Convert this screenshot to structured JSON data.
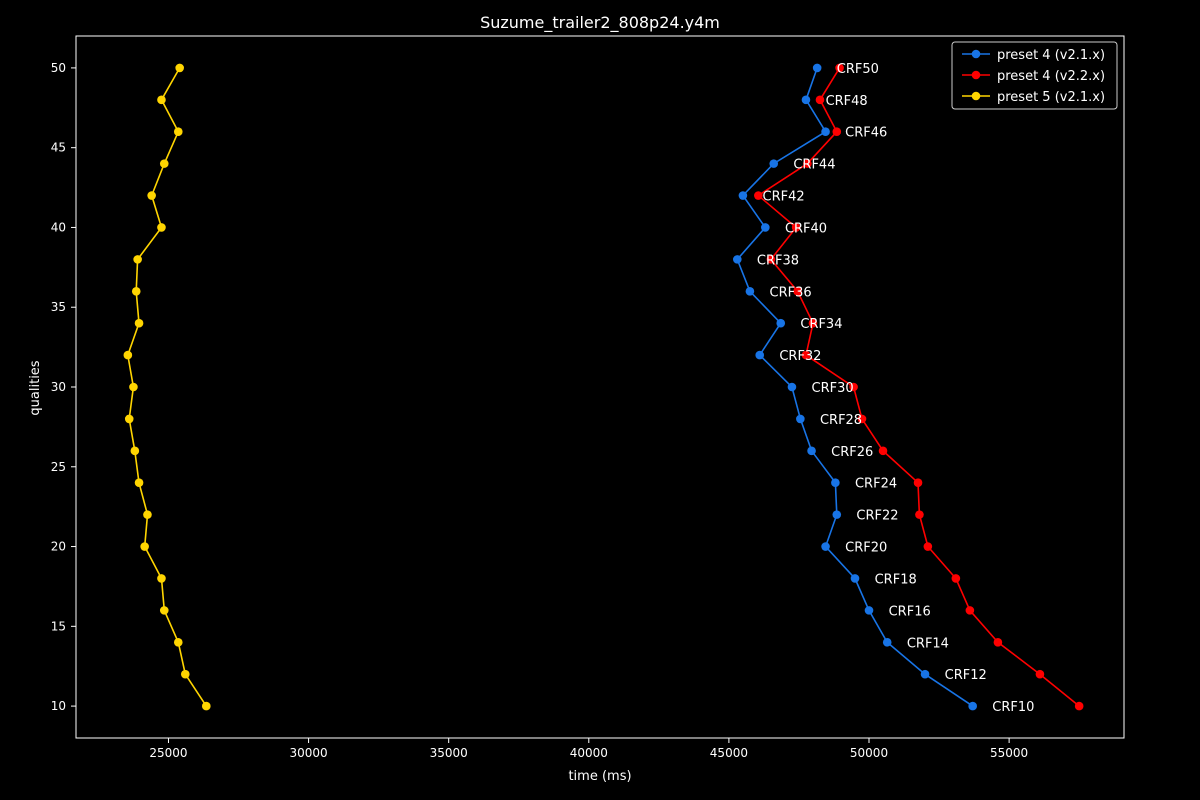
{
  "chart_data": {
    "type": "line",
    "title": "Suzume_trailer2_808p24.y4m",
    "xlabel": "time (ms)",
    "ylabel": "qualities",
    "xlim": [
      21700,
      59100
    ],
    "ylim": [
      8,
      52
    ],
    "xticks": [
      25000,
      30000,
      35000,
      40000,
      45000,
      50000,
      55000
    ],
    "yticks": [
      10,
      15,
      20,
      25,
      30,
      35,
      40,
      45,
      50
    ],
    "legend_position": "top-right",
    "series": [
      {
        "name": "preset 4 (v2.1.x)",
        "color": "#1874e6",
        "points": [
          [
            53700,
            10
          ],
          [
            52000,
            12
          ],
          [
            50650,
            14
          ],
          [
            50000,
            16
          ],
          [
            49500,
            18
          ],
          [
            48450,
            20
          ],
          [
            48850,
            22
          ],
          [
            48800,
            24
          ],
          [
            47950,
            26
          ],
          [
            47550,
            28
          ],
          [
            47250,
            30
          ],
          [
            46100,
            32
          ],
          [
            46850,
            34
          ],
          [
            45750,
            36
          ],
          [
            45300,
            38
          ],
          [
            46300,
            40
          ],
          [
            45500,
            42
          ],
          [
            46600,
            44
          ],
          [
            48450,
            46
          ],
          [
            47750,
            48
          ],
          [
            48150,
            50
          ]
        ]
      },
      {
        "name": "preset 4 (v2.2.x)",
        "color": "#ff0000",
        "points": [
          [
            57500,
            10
          ],
          [
            56100,
            12
          ],
          [
            54600,
            14
          ],
          [
            53600,
            16
          ],
          [
            53100,
            18
          ],
          [
            52100,
            20
          ],
          [
            51800,
            22
          ],
          [
            51750,
            24
          ],
          [
            50500,
            26
          ],
          [
            49750,
            28
          ],
          [
            49450,
            30
          ],
          [
            47750,
            32
          ],
          [
            48000,
            34
          ],
          [
            47450,
            36
          ],
          [
            46500,
            38
          ],
          [
            47400,
            40
          ],
          [
            46050,
            42
          ],
          [
            47800,
            44
          ],
          [
            48850,
            46
          ],
          [
            48250,
            48
          ],
          [
            48950,
            50
          ]
        ]
      },
      {
        "name": "preset 5 (v2.1.x)",
        "color": "#ffd500",
        "points": [
          [
            26350,
            10
          ],
          [
            25600,
            12
          ],
          [
            25350,
            14
          ],
          [
            24850,
            16
          ],
          [
            24750,
            18
          ],
          [
            24150,
            20
          ],
          [
            24250,
            22
          ],
          [
            23950,
            24
          ],
          [
            23800,
            26
          ],
          [
            23600,
            28
          ],
          [
            23750,
            30
          ],
          [
            23550,
            32
          ],
          [
            23950,
            34
          ],
          [
            23850,
            36
          ],
          [
            23900,
            38
          ],
          [
            24750,
            40
          ],
          [
            24400,
            42
          ],
          [
            24850,
            44
          ],
          [
            25350,
            46
          ],
          [
            24750,
            48
          ],
          [
            25400,
            50
          ]
        ]
      }
    ],
    "annotations": [
      {
        "text": "CRF10",
        "x": 54400,
        "y": 10
      },
      {
        "text": "CRF12",
        "x": 52700,
        "y": 12
      },
      {
        "text": "CRF14",
        "x": 51350,
        "y": 14
      },
      {
        "text": "CRF16",
        "x": 50700,
        "y": 16
      },
      {
        "text": "CRF18",
        "x": 50200,
        "y": 18
      },
      {
        "text": "CRF20",
        "x": 49150,
        "y": 20
      },
      {
        "text": "CRF22",
        "x": 49550,
        "y": 22
      },
      {
        "text": "CRF24",
        "x": 49500,
        "y": 24
      },
      {
        "text": "CRF26",
        "x": 48650,
        "y": 26
      },
      {
        "text": "CRF28",
        "x": 48250,
        "y": 28
      },
      {
        "text": "CRF30",
        "x": 47950,
        "y": 30
      },
      {
        "text": "CRF32",
        "x": 46800,
        "y": 32
      },
      {
        "text": "CRF34",
        "x": 47550,
        "y": 34
      },
      {
        "text": "CRF36",
        "x": 46450,
        "y": 36
      },
      {
        "text": "CRF38",
        "x": 46000,
        "y": 38
      },
      {
        "text": "CRF40",
        "x": 47000,
        "y": 40
      },
      {
        "text": "CRF42",
        "x": 46200,
        "y": 42
      },
      {
        "text": "CRF44",
        "x": 47300,
        "y": 44
      },
      {
        "text": "CRF46",
        "x": 49150,
        "y": 46
      },
      {
        "text": "CRF48",
        "x": 48450,
        "y": 48
      },
      {
        "text": "CRF50",
        "x": 48850,
        "y": 50
      }
    ]
  }
}
